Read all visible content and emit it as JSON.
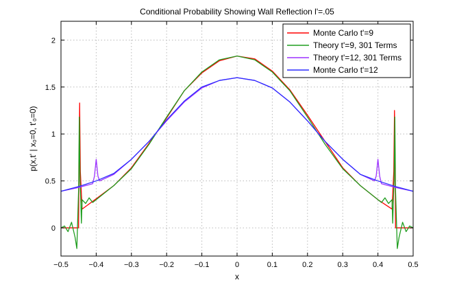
{
  "chart_data": {
    "type": "line",
    "title": "Conditional Probability Showing Wall Reflection l'=.05",
    "xlabel": "x",
    "ylabel": "p(x,t' | x₀=0, t'₀=0)",
    "xlim": [
      -0.5,
      0.5
    ],
    "ylim": [
      -0.3,
      2.2
    ],
    "xticks": [
      -0.5,
      -0.4,
      -0.3,
      -0.2,
      -0.1,
      0,
      0.1,
      0.2,
      0.3,
      0.4,
      0.5
    ],
    "xtick_labels": [
      "−0.5",
      "−0.4",
      "−0.3",
      "−0.2",
      "−0.1",
      "0",
      "0.1",
      "0.2",
      "0.3",
      "0.4",
      "0.5"
    ],
    "yticks": [
      0,
      0.5,
      1,
      1.5,
      2
    ],
    "ytick_labels": [
      "0",
      "0.5",
      "1",
      "1.5",
      "2"
    ],
    "grid": true,
    "legend_position": "top-right",
    "series": [
      {
        "name": "Monte Carlo t'=9",
        "color": "#ff0000",
        "x": [
          -0.5,
          -0.45,
          -0.449,
          -0.447,
          -0.445,
          -0.44,
          -0.4,
          -0.35,
          -0.3,
          -0.25,
          -0.2,
          -0.15,
          -0.1,
          -0.05,
          0,
          0.05,
          0.1,
          0.15,
          0.2,
          0.25,
          0.3,
          0.35,
          0.4,
          0.44,
          0.445,
          0.447,
          0.449,
          0.45,
          0.5
        ],
        "y": [
          0,
          0,
          0.6,
          1.33,
          0.6,
          0.2,
          0.31,
          0.45,
          0.64,
          0.9,
          1.17,
          1.46,
          1.65,
          1.78,
          1.83,
          1.8,
          1.67,
          1.47,
          1.2,
          0.92,
          0.64,
          0.45,
          0.3,
          0.2,
          0.6,
          1.25,
          0.6,
          0,
          0
        ]
      },
      {
        "name": "Theory t'=9, 301 Terms",
        "color": "#1f9d1f",
        "x": [
          -0.5,
          -0.49,
          -0.48,
          -0.47,
          -0.46,
          -0.455,
          -0.45,
          -0.448,
          -0.446,
          -0.444,
          -0.442,
          -0.44,
          -0.43,
          -0.42,
          -0.41,
          -0.4,
          -0.35,
          -0.3,
          -0.25,
          -0.2,
          -0.15,
          -0.1,
          -0.05,
          0,
          0.05,
          0.1,
          0.15,
          0.2,
          0.25,
          0.3,
          0.35,
          0.4,
          0.41,
          0.42,
          0.43,
          0.44,
          0.442,
          0.444,
          0.446,
          0.448,
          0.45,
          0.455,
          0.46,
          0.47,
          0.48,
          0.49,
          0.5
        ],
        "y": [
          0,
          0.02,
          -0.04,
          0.06,
          -0.1,
          -0.22,
          0.4,
          1.18,
          0.5,
          0.32,
          0.05,
          0.3,
          0.26,
          0.32,
          0.27,
          0.3,
          0.45,
          0.63,
          0.89,
          1.18,
          1.46,
          1.66,
          1.79,
          1.83,
          1.79,
          1.66,
          1.46,
          1.18,
          0.89,
          0.63,
          0.45,
          0.3,
          0.27,
          0.32,
          0.26,
          0.3,
          0.05,
          0.32,
          0.5,
          1.18,
          0.4,
          -0.22,
          -0.1,
          0.06,
          -0.04,
          0.02,
          0
        ]
      },
      {
        "name": "Theory t'=12, 301 Terms",
        "color": "#9b30ff",
        "x": [
          -0.5,
          -0.45,
          -0.44,
          -0.41,
          -0.405,
          -0.4,
          -0.395,
          -0.39,
          -0.35,
          -0.3,
          -0.25,
          -0.2,
          -0.15,
          -0.1,
          -0.05,
          0,
          0.05,
          0.1,
          0.15,
          0.2,
          0.25,
          0.3,
          0.35,
          0.39,
          0.395,
          0.4,
          0.405,
          0.41,
          0.44,
          0.45,
          0.5
        ],
        "y": [
          0.39,
          0.43,
          0.44,
          0.47,
          0.55,
          0.73,
          0.55,
          0.5,
          0.57,
          0.73,
          0.92,
          1.14,
          1.34,
          1.49,
          1.57,
          1.6,
          1.57,
          1.49,
          1.34,
          1.14,
          0.92,
          0.73,
          0.57,
          0.5,
          0.55,
          0.73,
          0.55,
          0.47,
          0.44,
          0.43,
          0.39
        ]
      },
      {
        "name": "Monte Carlo t'=12",
        "color": "#2b2bff",
        "x": [
          -0.5,
          -0.45,
          -0.4,
          -0.35,
          -0.3,
          -0.25,
          -0.2,
          -0.15,
          -0.1,
          -0.05,
          0,
          0.05,
          0.1,
          0.15,
          0.2,
          0.25,
          0.3,
          0.35,
          0.4,
          0.45,
          0.5
        ],
        "y": [
          0.39,
          0.44,
          0.5,
          0.58,
          0.73,
          0.92,
          1.15,
          1.35,
          1.5,
          1.57,
          1.6,
          1.57,
          1.49,
          1.34,
          1.14,
          0.92,
          0.73,
          0.57,
          0.5,
          0.44,
          0.39
        ]
      }
    ]
  }
}
